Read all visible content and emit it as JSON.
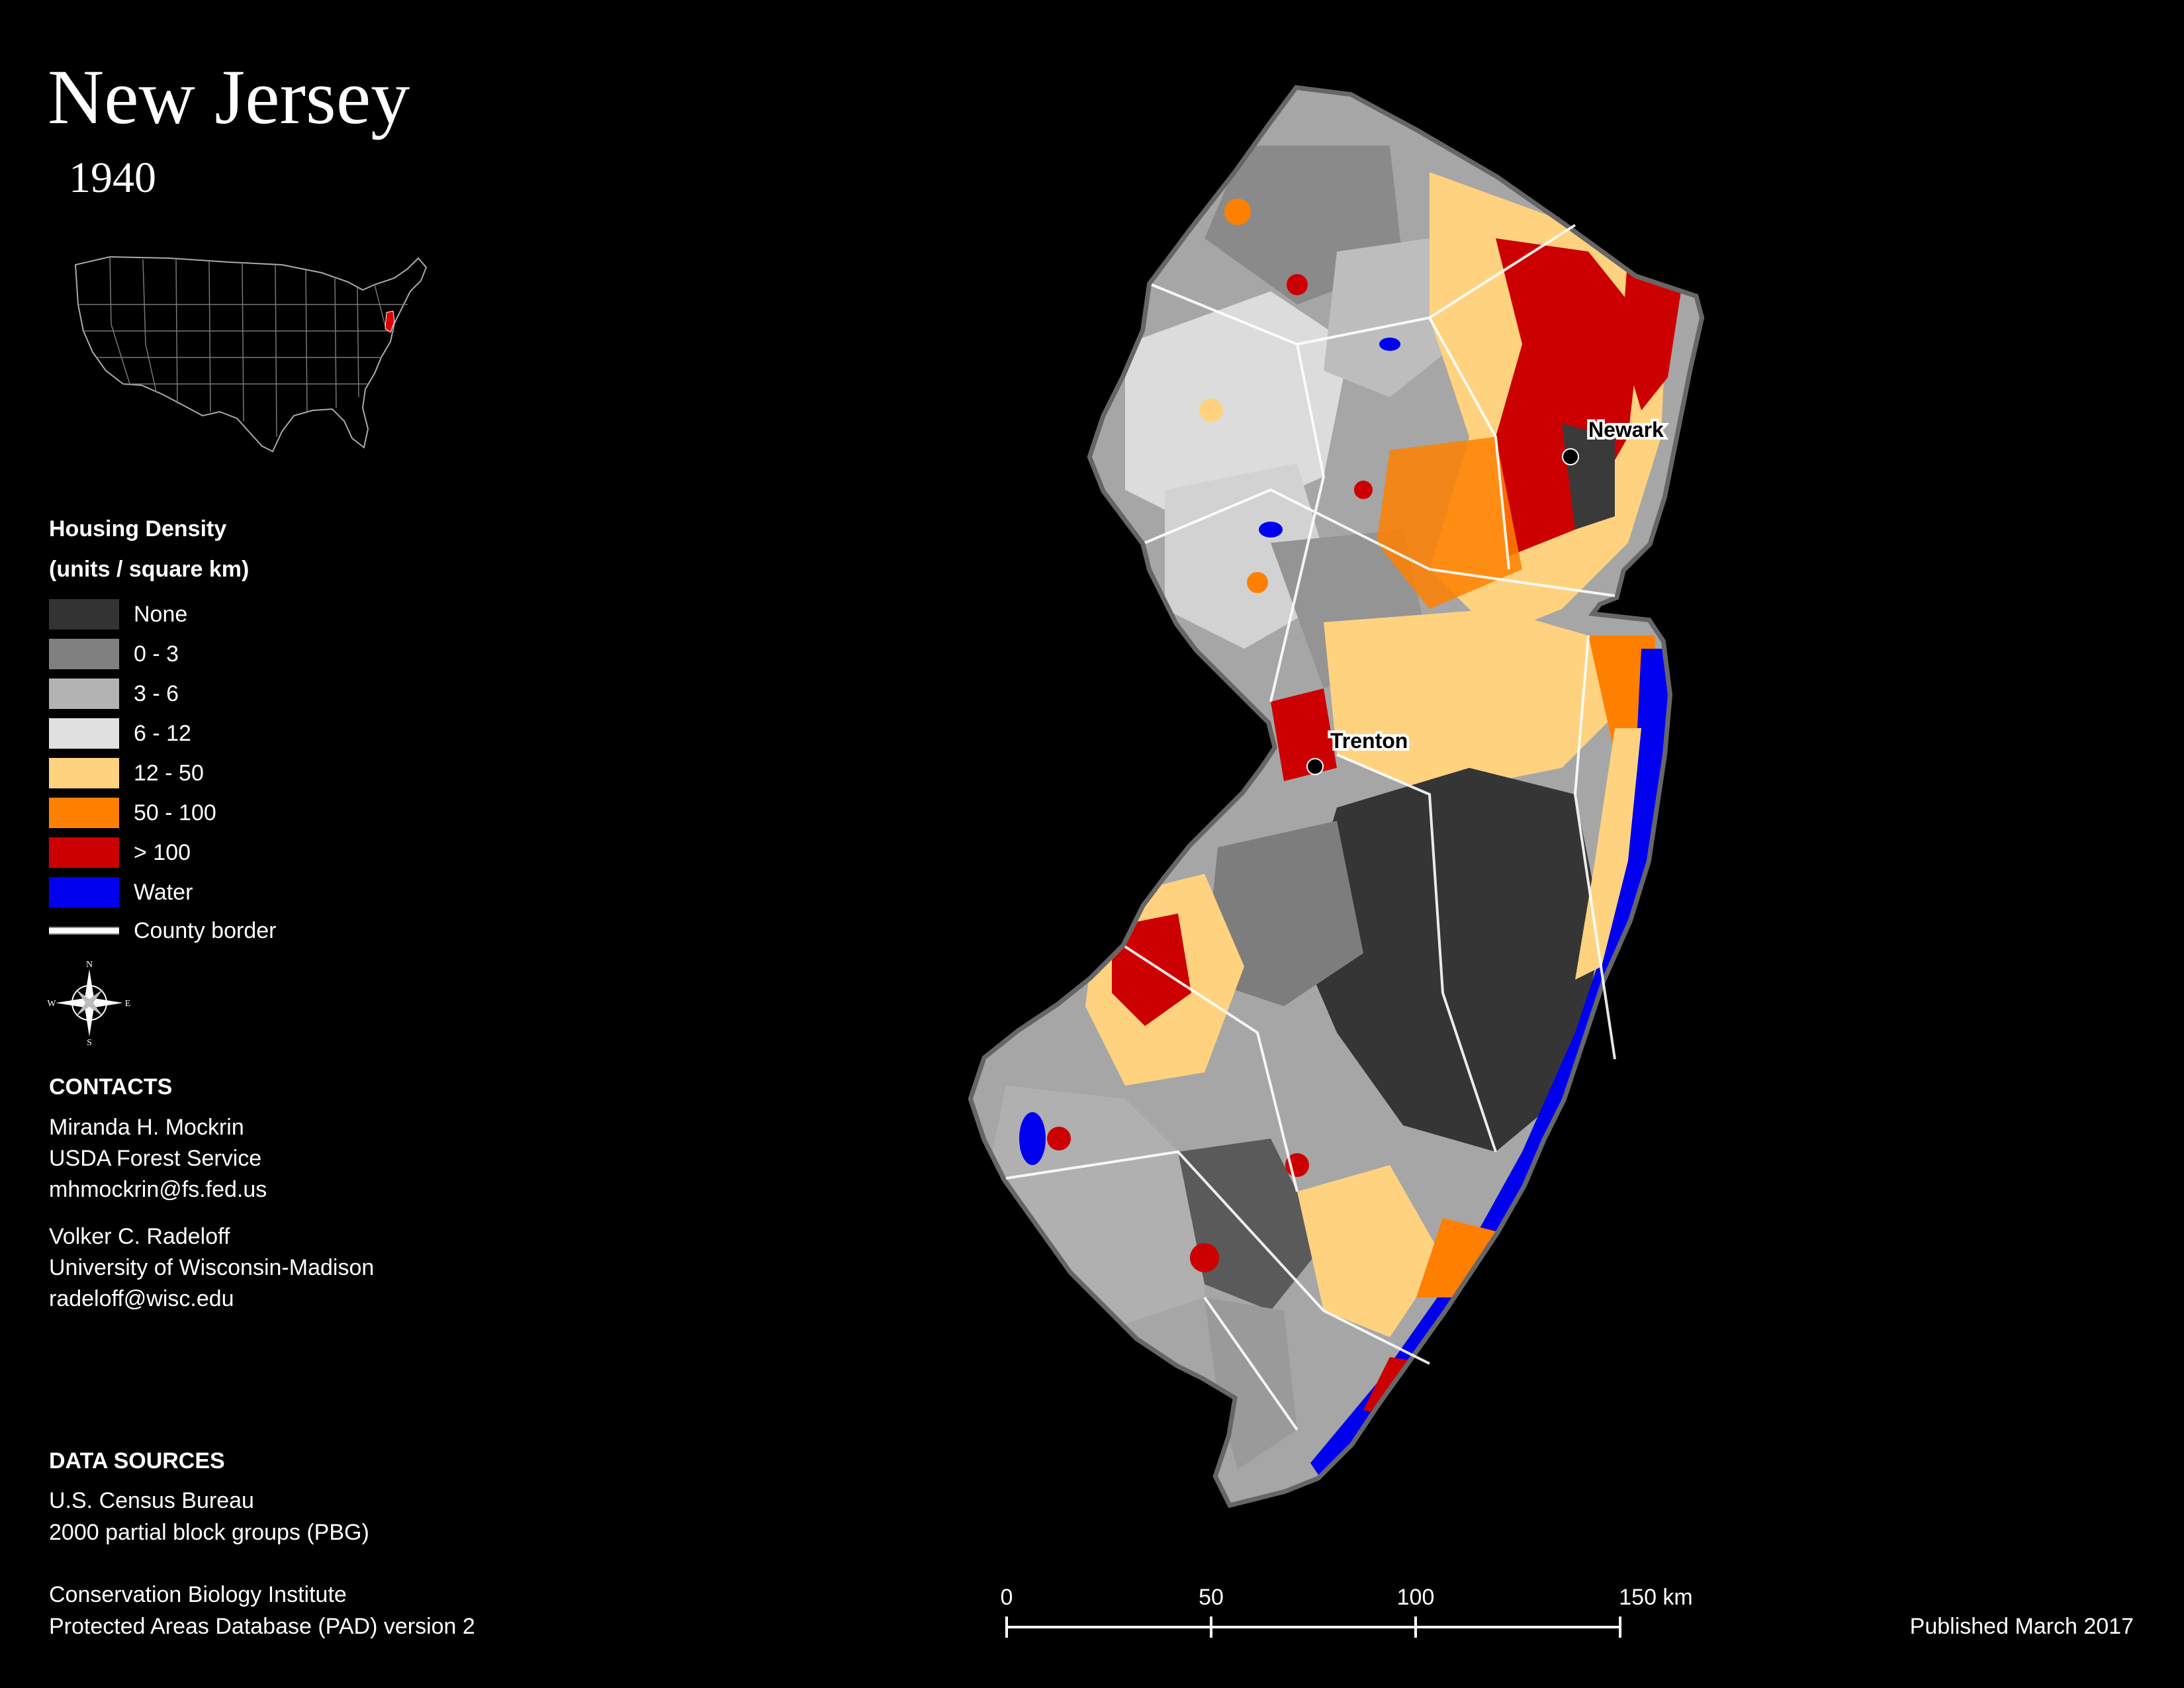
{
  "header": {
    "title": "New Jersey",
    "year": "1940"
  },
  "legend": {
    "title_line1": "Housing Density",
    "title_line2": "(units / square km)",
    "items": [
      {
        "label": "None",
        "color": "#333333"
      },
      {
        "label": "0 - 3",
        "color": "#808080"
      },
      {
        "label": "3 - 6",
        "color": "#b3b3b3"
      },
      {
        "label": "6 - 12",
        "color": "#e0e0e0"
      },
      {
        "label": "12 - 50",
        "color": "#ffd27f"
      },
      {
        "label": "50 - 100",
        "color": "#ff8000"
      },
      {
        "label": "> 100",
        "color": "#cc0000"
      },
      {
        "label": "Water",
        "color": "#0000ee"
      }
    ],
    "border_label": "County border"
  },
  "compass": {
    "n": "N",
    "s": "S",
    "e": "E",
    "w": "W"
  },
  "contacts": {
    "heading": "CONTACTS",
    "people": [
      {
        "name": "Miranda H. Mockrin",
        "org": "USDA Forest Service",
        "email": "mhmockrin@fs.fed.us"
      },
      {
        "name": "Volker C. Radeloff",
        "org": "University of Wisconsin-Madison",
        "email": "radeloff@wisc.edu"
      }
    ]
  },
  "sources": {
    "heading": "DATA SOURCES",
    "line1": "U.S. Census Bureau",
    "line2": "2000 partial block groups (PBG)",
    "line3": "Conservation Biology Institute",
    "line4": "Protected Areas Database (PAD) version 2"
  },
  "cities": {
    "newark": "Newark",
    "trenton": "Trenton"
  },
  "scale": {
    "ticks": [
      "0",
      "50",
      "100",
      "150 km"
    ]
  },
  "footer": {
    "published": "Published March 2017"
  }
}
